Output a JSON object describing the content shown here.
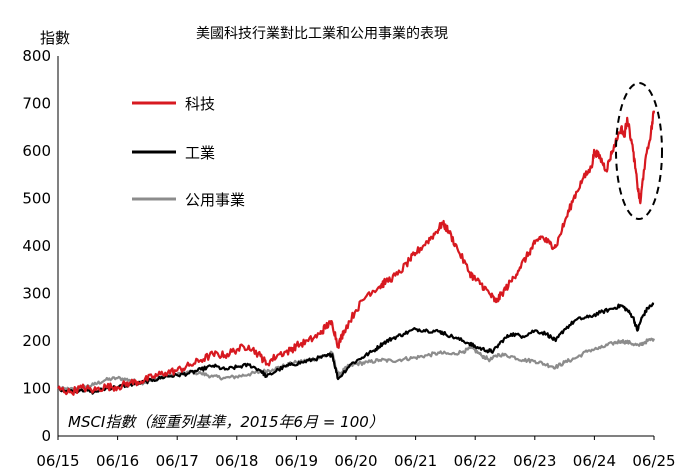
{
  "chart_data": {
    "type": "line",
    "title": "美國科技行業對比工業和公用事業的表現",
    "ylabel": "指數",
    "note": "MSCI指數（經重列基準，2015年6月 = 100）",
    "ylim": [
      0,
      800
    ],
    "yticks": [
      "0",
      "100",
      "200",
      "300",
      "400",
      "500",
      "600",
      "700",
      "800"
    ],
    "xticks": [
      "06/15",
      "06/16",
      "06/17",
      "06/18",
      "06/19",
      "06/20",
      "06/21",
      "06/22",
      "06/23",
      "06/24",
      "06/25"
    ],
    "xlim": [
      2015.5,
      2025.5
    ],
    "legend_position": "top-left",
    "series": [
      {
        "name": "科技",
        "color": "#d71920",
        "points": [
          [
            2015.5,
            100
          ],
          [
            2015.7,
            92
          ],
          [
            2015.9,
            102
          ],
          [
            2016.1,
            96
          ],
          [
            2016.3,
            104
          ],
          [
            2016.5,
            103
          ],
          [
            2016.7,
            112
          ],
          [
            2016.9,
            115
          ],
          [
            2017.1,
            125
          ],
          [
            2017.3,
            133
          ],
          [
            2017.5,
            138
          ],
          [
            2017.7,
            148
          ],
          [
            2017.9,
            160
          ],
          [
            2018.1,
            172
          ],
          [
            2018.3,
            170
          ],
          [
            2018.5,
            182
          ],
          [
            2018.7,
            190
          ],
          [
            2018.9,
            168
          ],
          [
            2019.0,
            152
          ],
          [
            2019.2,
            172
          ],
          [
            2019.4,
            180
          ],
          [
            2019.5,
            190
          ],
          [
            2019.7,
            200
          ],
          [
            2019.9,
            215
          ],
          [
            2020.0,
            232
          ],
          [
            2020.1,
            238
          ],
          [
            2020.2,
            190
          ],
          [
            2020.3,
            222
          ],
          [
            2020.5,
            265
          ],
          [
            2020.7,
            300
          ],
          [
            2020.9,
            315
          ],
          [
            2021.0,
            325
          ],
          [
            2021.2,
            340
          ],
          [
            2021.4,
            370
          ],
          [
            2021.5,
            385
          ],
          [
            2021.7,
            410
          ],
          [
            2021.85,
            430
          ],
          [
            2021.95,
            448
          ],
          [
            2022.05,
            432
          ],
          [
            2022.2,
            395
          ],
          [
            2022.4,
            345
          ],
          [
            2022.5,
            330
          ],
          [
            2022.6,
            320
          ],
          [
            2022.75,
            298
          ],
          [
            2022.85,
            282
          ],
          [
            2022.95,
            300
          ],
          [
            2023.1,
            325
          ],
          [
            2023.25,
            355
          ],
          [
            2023.4,
            385
          ],
          [
            2023.5,
            405
          ],
          [
            2023.6,
            420
          ],
          [
            2023.75,
            405
          ],
          [
            2023.85,
            398
          ],
          [
            2024.0,
            450
          ],
          [
            2024.15,
            500
          ],
          [
            2024.3,
            540
          ],
          [
            2024.45,
            565
          ],
          [
            2024.5,
            600
          ],
          [
            2024.6,
            585
          ],
          [
            2024.7,
            560
          ],
          [
            2024.8,
            600
          ],
          [
            2024.95,
            650
          ],
          [
            2025.0,
            630
          ],
          [
            2025.05,
            670
          ],
          [
            2025.15,
            600
          ],
          [
            2025.22,
            530
          ],
          [
            2025.27,
            490
          ],
          [
            2025.33,
            560
          ],
          [
            2025.45,
            640
          ],
          [
            2025.5,
            685
          ]
        ]
      },
      {
        "name": "工業",
        "color": "#000000",
        "points": [
          [
            2015.5,
            100
          ],
          [
            2015.7,
            94
          ],
          [
            2015.9,
            98
          ],
          [
            2016.1,
            92
          ],
          [
            2016.3,
            100
          ],
          [
            2016.5,
            103
          ],
          [
            2016.7,
            108
          ],
          [
            2016.9,
            112
          ],
          [
            2017.1,
            118
          ],
          [
            2017.3,
            125
          ],
          [
            2017.5,
            128
          ],
          [
            2017.7,
            132
          ],
          [
            2017.9,
            140
          ],
          [
            2018.1,
            148
          ],
          [
            2018.3,
            140
          ],
          [
            2018.5,
            145
          ],
          [
            2018.7,
            150
          ],
          [
            2018.9,
            138
          ],
          [
            2019.0,
            125
          ],
          [
            2019.2,
            140
          ],
          [
            2019.4,
            150
          ],
          [
            2019.6,
            155
          ],
          [
            2019.8,
            162
          ],
          [
            2020.0,
            168
          ],
          [
            2020.1,
            172
          ],
          [
            2020.2,
            120
          ],
          [
            2020.4,
            150
          ],
          [
            2020.6,
            165
          ],
          [
            2020.8,
            180
          ],
          [
            2020.95,
            195
          ],
          [
            2021.1,
            205
          ],
          [
            2021.3,
            215
          ],
          [
            2021.5,
            225
          ],
          [
            2021.7,
            222
          ],
          [
            2021.9,
            220
          ],
          [
            2022.0,
            215
          ],
          [
            2022.2,
            205
          ],
          [
            2022.4,
            195
          ],
          [
            2022.5,
            188
          ],
          [
            2022.7,
            180
          ],
          [
            2022.8,
            178
          ],
          [
            2022.95,
            200
          ],
          [
            2023.1,
            215
          ],
          [
            2023.3,
            210
          ],
          [
            2023.5,
            222
          ],
          [
            2023.7,
            215
          ],
          [
            2023.85,
            200
          ],
          [
            2024.0,
            225
          ],
          [
            2024.2,
            245
          ],
          [
            2024.4,
            250
          ],
          [
            2024.6,
            260
          ],
          [
            2024.8,
            268
          ],
          [
            2024.95,
            275
          ],
          [
            2025.05,
            265
          ],
          [
            2025.15,
            250
          ],
          [
            2025.22,
            222
          ],
          [
            2025.3,
            250
          ],
          [
            2025.4,
            270
          ],
          [
            2025.5,
            278
          ]
        ]
      },
      {
        "name": "公用事業",
        "color": "#8c8c8c",
        "points": [
          [
            2015.5,
            100
          ],
          [
            2015.7,
            98
          ],
          [
            2015.9,
            102
          ],
          [
            2016.1,
            108
          ],
          [
            2016.3,
            118
          ],
          [
            2016.5,
            122
          ],
          [
            2016.7,
            118
          ],
          [
            2016.9,
            112
          ],
          [
            2017.1,
            118
          ],
          [
            2017.3,
            126
          ],
          [
            2017.5,
            130
          ],
          [
            2017.7,
            135
          ],
          [
            2017.9,
            132
          ],
          [
            2018.1,
            125
          ],
          [
            2018.3,
            122
          ],
          [
            2018.5,
            125
          ],
          [
            2018.7,
            130
          ],
          [
            2018.9,
            135
          ],
          [
            2019.1,
            140
          ],
          [
            2019.3,
            148
          ],
          [
            2019.5,
            155
          ],
          [
            2019.7,
            160
          ],
          [
            2019.9,
            165
          ],
          [
            2020.1,
            175
          ],
          [
            2020.2,
            128
          ],
          [
            2020.35,
            145
          ],
          [
            2020.5,
            152
          ],
          [
            2020.7,
            155
          ],
          [
            2020.9,
            160
          ],
          [
            2021.1,
            158
          ],
          [
            2021.3,
            162
          ],
          [
            2021.5,
            165
          ],
          [
            2021.7,
            170
          ],
          [
            2021.9,
            175
          ],
          [
            2022.1,
            172
          ],
          [
            2022.3,
            178
          ],
          [
            2022.45,
            185
          ],
          [
            2022.6,
            170
          ],
          [
            2022.75,
            160
          ],
          [
            2022.9,
            172
          ],
          [
            2023.1,
            168
          ],
          [
            2023.3,
            160
          ],
          [
            2023.5,
            158
          ],
          [
            2023.7,
            150
          ],
          [
            2023.85,
            145
          ],
          [
            2024.0,
            155
          ],
          [
            2024.2,
            165
          ],
          [
            2024.4,
            180
          ],
          [
            2024.6,
            185
          ],
          [
            2024.8,
            195
          ],
          [
            2024.95,
            200
          ],
          [
            2025.1,
            196
          ],
          [
            2025.25,
            190
          ],
          [
            2025.35,
            198
          ],
          [
            2025.5,
            205
          ]
        ]
      }
    ]
  }
}
